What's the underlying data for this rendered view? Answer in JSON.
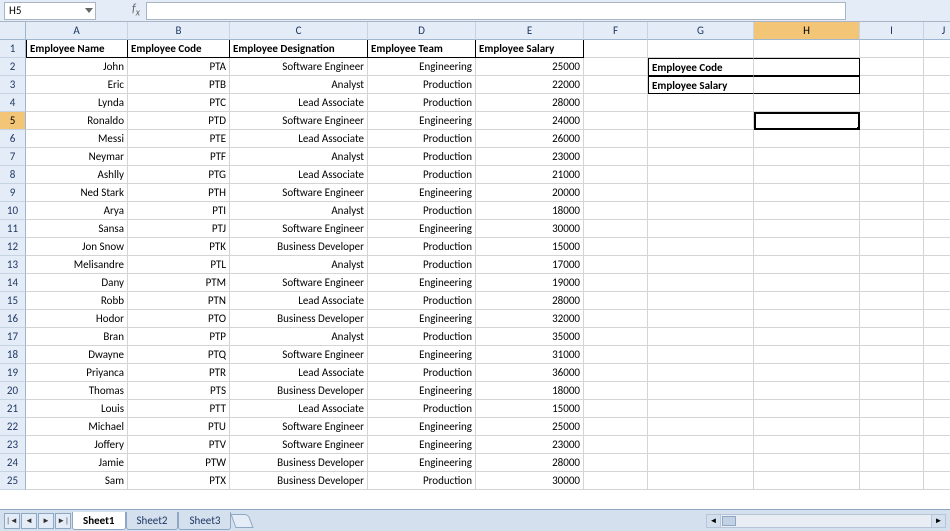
{
  "name_box": "H5",
  "formula_value": "",
  "col_widths": {
    "A": 102,
    "B": 102,
    "C": 138,
    "D": 108,
    "E": 108,
    "F": 64,
    "G": 106,
    "H": 106,
    "I": 64,
    "J": 40
  },
  "cols": [
    "A",
    "B",
    "C",
    "D",
    "E",
    "F",
    "G",
    "H",
    "I",
    "J"
  ],
  "selected_col": "H",
  "selected_row": 5,
  "headers": {
    "A": "Employee Name",
    "B": "Employee Code",
    "C": "Employee Designation",
    "D": "Employee Team",
    "E": "Employee Salary"
  },
  "rows": [
    {
      "name": "John",
      "code": "PTA",
      "desig": "Software Engineer",
      "team": "Engineering",
      "salary": 25000
    },
    {
      "name": "Eric",
      "code": "PTB",
      "desig": "Analyst",
      "team": "Production",
      "salary": 22000
    },
    {
      "name": "Lynda",
      "code": "PTC",
      "desig": "Lead Associate",
      "team": "Production",
      "salary": 28000
    },
    {
      "name": "Ronaldo",
      "code": "PTD",
      "desig": "Software Engineer",
      "team": "Engineering",
      "salary": 24000
    },
    {
      "name": "Messi",
      "code": "PTE",
      "desig": "Lead Associate",
      "team": "Production",
      "salary": 26000
    },
    {
      "name": "Neymar",
      "code": "PTF",
      "desig": "Analyst",
      "team": "Production",
      "salary": 23000
    },
    {
      "name": "Ashlly",
      "code": "PTG",
      "desig": "Lead Associate",
      "team": "Production",
      "salary": 21000
    },
    {
      "name": "Ned Stark",
      "code": "PTH",
      "desig": "Software Engineer",
      "team": "Engineering",
      "salary": 20000
    },
    {
      "name": "Arya",
      "code": "PTI",
      "desig": "Analyst",
      "team": "Production",
      "salary": 18000
    },
    {
      "name": "Sansa",
      "code": "PTJ",
      "desig": "Software Engineer",
      "team": "Engineering",
      "salary": 30000
    },
    {
      "name": "Jon Snow",
      "code": "PTK",
      "desig": "Business Developer",
      "team": "Production",
      "salary": 15000
    },
    {
      "name": "Melisandre",
      "code": "PTL",
      "desig": "Analyst",
      "team": "Production",
      "salary": 17000
    },
    {
      "name": "Dany",
      "code": "PTM",
      "desig": "Software Engineer",
      "team": "Engineering",
      "salary": 19000
    },
    {
      "name": "Robb",
      "code": "PTN",
      "desig": "Lead Associate",
      "team": "Production",
      "salary": 28000
    },
    {
      "name": "Hodor",
      "code": "PTO",
      "desig": "Business Developer",
      "team": "Engineering",
      "salary": 32000
    },
    {
      "name": "Bran",
      "code": "PTP",
      "desig": "Analyst",
      "team": "Production",
      "salary": 35000
    },
    {
      "name": "Dwayne",
      "code": "PTQ",
      "desig": "Software Engineer",
      "team": "Engineering",
      "salary": 31000
    },
    {
      "name": "Priyanca",
      "code": "PTR",
      "desig": "Lead Associate",
      "team": "Production",
      "salary": 36000
    },
    {
      "name": "Thomas",
      "code": "PTS",
      "desig": "Business Developer",
      "team": "Engineering",
      "salary": 18000
    },
    {
      "name": "Louis",
      "code": "PTT",
      "desig": "Lead Associate",
      "team": "Production",
      "salary": 15000
    },
    {
      "name": "Michael",
      "code": "PTU",
      "desig": "Software Engineer",
      "team": "Engineering",
      "salary": 25000
    },
    {
      "name": "Joffery",
      "code": "PTV",
      "desig": "Software Engineer",
      "team": "Engineering",
      "salary": 23000
    },
    {
      "name": "Jamie",
      "code": "PTW",
      "desig": "Business Developer",
      "team": "Engineering",
      "salary": 28000
    },
    {
      "name": "Sam",
      "code": "PTX",
      "desig": "Business Developer",
      "team": "Production",
      "salary": 30000
    }
  ],
  "lookup": {
    "code_label": "Employee Code",
    "salary_label": "Employee Salary",
    "code_value": "",
    "salary_value": ""
  },
  "tabs": [
    "Sheet1",
    "Sheet2",
    "Sheet3"
  ],
  "active_tab": 0,
  "colors": {
    "header_bg": "#e4ecf7",
    "sel_header_bg": "#f3c677",
    "grid_line": "#d4d4d4",
    "border_dark": "#000000"
  }
}
